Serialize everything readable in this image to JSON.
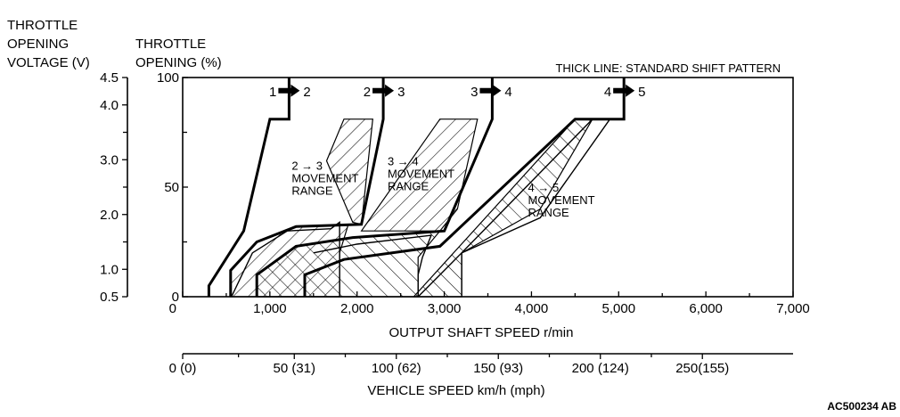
{
  "chart_data": {
    "type": "line",
    "title": "",
    "note": "THICK LINE: STANDARD SHIFT PATTERN",
    "figure_id": "AC500234 AB",
    "xlabel": "OUTPUT SHAFT SPEED r/min",
    "xlim": [
      0,
      7000
    ],
    "x_ticks": [
      0,
      1000,
      2000,
      3000,
      4000,
      5000,
      6000,
      7000
    ],
    "x_tick_labels": [
      "0",
      "1,000",
      "2,000",
      "3,000",
      "4,000",
      "5,000",
      "6,000",
      "7,000"
    ],
    "ylabel_left_outer": [
      "THROTTLE",
      "OPENING",
      "VOLTAGE (V)"
    ],
    "ylabel_left_inner": [
      "THROTTLE",
      "OPENING (%)"
    ],
    "ylim": [
      0,
      100
    ],
    "y_ticks": [
      0,
      50,
      100
    ],
    "y_tick_labels": [
      "0",
      "50",
      "100"
    ],
    "voltage_ticks": [
      {
        "label": "4.5",
        "opening": 100
      },
      {
        "label": "4.0",
        "opening": 87.5
      },
      {
        "label": "3.0",
        "opening": 62.5
      },
      {
        "label": "2.0",
        "opening": 37.5
      },
      {
        "label": "1.0",
        "opening": 12.5
      },
      {
        "label": "0.5",
        "opening": 0
      }
    ],
    "voltage_minor_ticks": [
      75,
      50,
      25
    ],
    "vehicle_speed_axis": {
      "label": "VEHICLE SPEED km/h (mph)",
      "ticks": [
        {
          "label": "0 (0)",
          "rpm": 0
        },
        {
          "label": "50 (31)",
          "rpm": 1280
        },
        {
          "label": "100 (62)",
          "rpm": 2450
        },
        {
          "label": "150 (93)",
          "rpm": 3620
        },
        {
          "label": "200 (124)",
          "rpm": 4790
        },
        {
          "label": "250(155)",
          "rpm": 5960
        }
      ]
    },
    "shift_labels": [
      {
        "from": "1",
        "to": "2",
        "rpm": 1220
      },
      {
        "from": "2",
        "to": "3",
        "rpm": 2300
      },
      {
        "from": "3",
        "to": "4",
        "rpm": 3530
      },
      {
        "from": "4",
        "to": "5",
        "rpm": 5060
      }
    ],
    "range_labels": [
      {
        "lines": [
          "2 → 3",
          "MOVEMENT",
          "RANGE"
        ],
        "rpm": 1250,
        "opening": 58
      },
      {
        "lines": [
          "3 → 4",
          "MOVEMENT",
          "RANGE"
        ],
        "rpm": 2350,
        "opening": 60
      },
      {
        "lines": [
          "4 → 5",
          "MOVEMENT",
          "RANGE"
        ],
        "rpm": 3960,
        "opening": 48
      }
    ],
    "series": [
      {
        "id": "s12",
        "style": "thick",
        "x": [
          300,
          300,
          700,
          1000,
          1220,
          1220
        ],
        "y": [
          0,
          5,
          30,
          81,
          81,
          100
        ]
      },
      {
        "id": "s23",
        "style": "thick",
        "x": [
          550,
          550,
          850,
          1300,
          2050,
          2300,
          2300
        ],
        "y": [
          0,
          12,
          25,
          32,
          33,
          81,
          100
        ]
      },
      {
        "id": "s34",
        "style": "thick",
        "x": [
          850,
          850,
          1300,
          1950,
          3000,
          3550,
          3550
        ],
        "y": [
          0,
          10,
          23,
          27,
          30,
          81,
          100
        ]
      },
      {
        "id": "s45",
        "style": "thick",
        "x": [
          1400,
          1400,
          1850,
          2950,
          4500,
          5060,
          5060
        ],
        "y": [
          0,
          10,
          17,
          23,
          81,
          81,
          100
        ]
      },
      {
        "id": "r23_down",
        "style": "thin",
        "x": [
          560,
          800,
          1200,
          1700,
          1800,
          1800
        ],
        "y": [
          0,
          20,
          30,
          31,
          34,
          0
        ]
      },
      {
        "id": "r34_down",
        "style": "thin",
        "x": [
          1500,
          2000,
          2850,
          2750,
          2700,
          2700
        ],
        "y": [
          20,
          24,
          28,
          18,
          10,
          0
        ]
      },
      {
        "id": "r45_down",
        "style": "thin",
        "x": [
          2700,
          3200,
          4100,
          4900,
          4700,
          3200,
          3200
        ],
        "y": [
          0,
          20,
          36,
          81,
          81,
          20,
          0
        ]
      }
    ],
    "hatched_regions": [
      {
        "id": "zone23",
        "pattern": "left",
        "x": [
          1650,
          1850,
          2180,
          2050,
          1950,
          1650
        ],
        "y": [
          62,
          81,
          81,
          33,
          34,
          62
        ]
      },
      {
        "id": "zone34",
        "pattern": "left",
        "x": [
          2050,
          2950,
          3380,
          3150,
          2950,
          2300,
          2050
        ],
        "y": [
          30,
          81,
          81,
          40,
          30,
          30,
          30
        ]
      },
      {
        "id": "zone45",
        "pattern": "right",
        "x": [
          2650,
          4500,
          4700,
          4100,
          3200,
          3200,
          2650
        ],
        "y": [
          0,
          81,
          81,
          40,
          20,
          0,
          0
        ]
      },
      {
        "id": "zone_low_a",
        "pattern": "left",
        "x": [
          550,
          850,
          1300,
          1900,
          1800,
          1800,
          550
        ],
        "y": [
          12,
          25,
          32,
          33,
          20,
          0,
          0
        ]
      },
      {
        "id": "zone_low_b",
        "pattern": "right",
        "x": [
          850,
          1300,
          1950,
          2950,
          2700,
          2700,
          850
        ],
        "y": [
          10,
          23,
          27,
          30,
          18,
          0,
          0
        ]
      }
    ],
    "grid": false,
    "legend": "none"
  }
}
